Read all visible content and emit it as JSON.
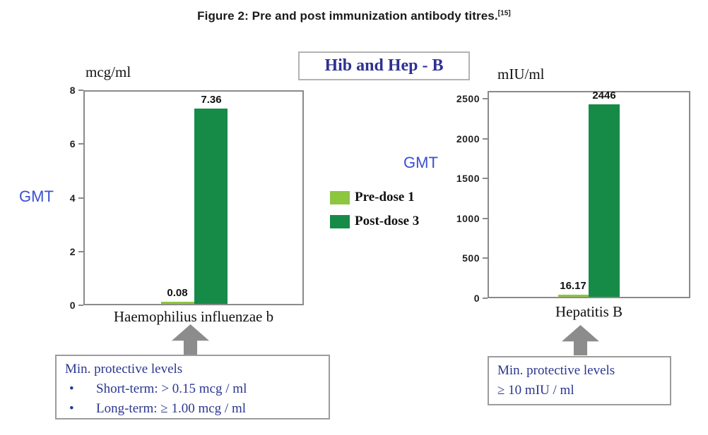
{
  "figure": {
    "title": "Figure 2: Pre and post immunization antibody titres.",
    "ref": "[15]"
  },
  "header": {
    "title": "Hib and Hep - B"
  },
  "legend": {
    "items": [
      {
        "label": "Pre-dose 1",
        "color": "#8DC63F"
      },
      {
        "label": "Post-dose 3",
        "color": "#168B47"
      }
    ]
  },
  "charts": {
    "left": {
      "unit": "mcg/ml",
      "gmt": "GMT",
      "category": "Haemophilius influenzae b",
      "ymax": 8,
      "yticks": [
        "8",
        "6",
        "4",
        "2",
        "0"
      ],
      "bars": [
        {
          "series": "Pre-dose 1",
          "value": 0.08,
          "label": "0.08"
        },
        {
          "series": "Post-dose 3",
          "value": 7.36,
          "label": "7.36"
        }
      ]
    },
    "right": {
      "unit": "mIU/ml",
      "gmt": "GMT",
      "category": "Hepatitis B",
      "ymax": 2600,
      "yticks": [
        "2500",
        "2000",
        "1500",
        "1000",
        "500",
        "0"
      ],
      "bars": [
        {
          "series": "Pre-dose 1",
          "value": 16.17,
          "label": "16.17"
        },
        {
          "series": "Post-dose 3",
          "value": 2446,
          "label": "2446"
        }
      ]
    }
  },
  "notes": {
    "left": {
      "title": "Min. protective levels",
      "bullet_char": "•",
      "bullets": [
        "Short-term: > 0.15 mcg / ml",
        "Long-term: ≥  1.00 mcg / ml"
      ]
    },
    "right": {
      "title": "Min. protective levels",
      "line": "≥ 10 mIU / ml"
    }
  },
  "chart_data": [
    {
      "type": "bar",
      "title": "Hib and Hep - B",
      "subtitle": "Figure 2: Pre and post immunization antibody titres.[15]",
      "categories": [
        "Haemophilius influenzae b"
      ],
      "series": [
        {
          "name": "Pre-dose 1",
          "values": [
            0.08
          ]
        },
        {
          "name": "Post-dose 3",
          "values": [
            7.36
          ]
        }
      ],
      "ylabel": "GMT",
      "xlabel": "",
      "unit": "mcg/ml",
      "ylim": [
        0,
        8
      ],
      "yticks": [
        0,
        2,
        4,
        6,
        8
      ],
      "grid": false,
      "legend_position": "center between charts",
      "annotation": "Min. protective levels — Short-term: > 0.15 mcg / ml; Long-term: ≥ 1.00 mcg / ml"
    },
    {
      "type": "bar",
      "title": "Hib and Hep - B",
      "subtitle": "Figure 2: Pre and post immunization antibody titres.[15]",
      "categories": [
        "Hepatitis B"
      ],
      "series": [
        {
          "name": "Pre-dose 1",
          "values": [
            16.17
          ]
        },
        {
          "name": "Post-dose 3",
          "values": [
            2446
          ]
        }
      ],
      "ylabel": "GMT",
      "xlabel": "",
      "unit": "mIU/ml",
      "ylim": [
        0,
        2600
      ],
      "yticks": [
        0,
        500,
        1000,
        1500,
        2000,
        2500
      ],
      "grid": false,
      "legend_position": "center between charts",
      "annotation": "Min. protective levels — ≥ 10 mIU / ml"
    }
  ]
}
